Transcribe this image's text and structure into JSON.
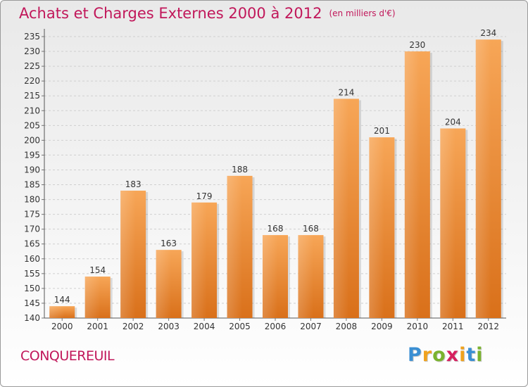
{
  "title": "Achats et Charges Externes 2000 à 2012",
  "unit": "(en milliers d'€)",
  "commune": "CONQUEREUIL",
  "logo": {
    "letters": [
      "P",
      "r",
      "o",
      "x",
      "i",
      "t",
      "i"
    ],
    "colors": [
      "#3a8fd3",
      "#f0a21d",
      "#7ab32e",
      "#d6205f",
      "#f0a21d",
      "#3a8fd3",
      "#7ab32e"
    ]
  },
  "chart_data": {
    "type": "bar",
    "categories": [
      "2000",
      "2001",
      "2002",
      "2003",
      "2004",
      "2005",
      "2006",
      "2007",
      "2008",
      "2009",
      "2010",
      "2011",
      "2012"
    ],
    "values": [
      144,
      154,
      183,
      163,
      179,
      188,
      168,
      168,
      214,
      201,
      230,
      204,
      234
    ],
    "ylim": [
      140,
      235
    ],
    "yticks": [
      140,
      145,
      150,
      155,
      160,
      165,
      170,
      175,
      180,
      185,
      190,
      195,
      200,
      205,
      210,
      215,
      220,
      225,
      230,
      235
    ],
    "grid": true,
    "bar_color": "#f0963f"
  }
}
